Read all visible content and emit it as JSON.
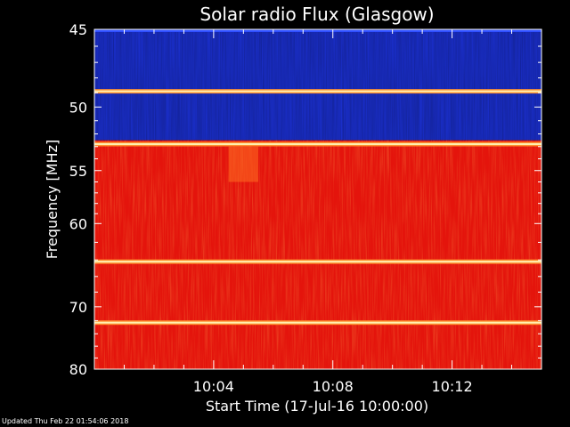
{
  "chart_data": {
    "type": "heatmap",
    "title": "Solar radio Flux (Glasgow)",
    "xlabel": "Start Time (17-Jul-16 10:00:00)",
    "ylabel": "Frequency [MHz]",
    "x_unit": "time of day (HH:MM)",
    "x_range": [
      "10:00:00",
      "10:15:00"
    ],
    "y_range": [
      45,
      80
    ],
    "x_ticks": [
      {
        "label": "10:04",
        "value_min": 4
      },
      {
        "label": "10:08",
        "value_min": 8
      },
      {
        "label": "10:12",
        "value_min": 12
      }
    ],
    "y_ticks": [
      {
        "label": "45",
        "value": 45
      },
      {
        "label": "50",
        "value": 50
      },
      {
        "label": "55",
        "value": 55
      },
      {
        "label": "60",
        "value": 60
      },
      {
        "label": "70",
        "value": 70
      },
      {
        "label": "80",
        "value": 80
      }
    ],
    "y_minor_ticks": [
      46,
      47,
      48,
      49,
      51,
      52,
      53,
      54,
      56,
      57,
      58,
      59,
      62,
      64,
      66,
      68,
      72,
      74,
      76,
      78
    ],
    "x_minor_ticks_min": [
      1,
      2,
      3,
      5,
      6,
      7,
      9,
      10,
      11,
      13,
      14
    ],
    "colormap": [
      "#1a1aa0",
      "#2030e0",
      "#e01010",
      "#ff3010",
      "#ff8020",
      "#ffe080"
    ],
    "bands": [
      {
        "freq_from": 45,
        "freq_to": 52.5,
        "level": "low",
        "color": "#1a2ec8"
      },
      {
        "freq_from": 52.5,
        "freq_to": 80,
        "level": "high",
        "color": "#e4140c"
      }
    ],
    "interference_lines_mhz": [
      48.9,
      52.8,
      64.2,
      72.3
    ],
    "burst": {
      "time_from_min": 4.5,
      "time_to_min": 5.5,
      "freq_from": 53,
      "freq_to": 56
    }
  },
  "footer": {
    "updated": "Updated Thu Feb 22 01:54:06 2018"
  }
}
